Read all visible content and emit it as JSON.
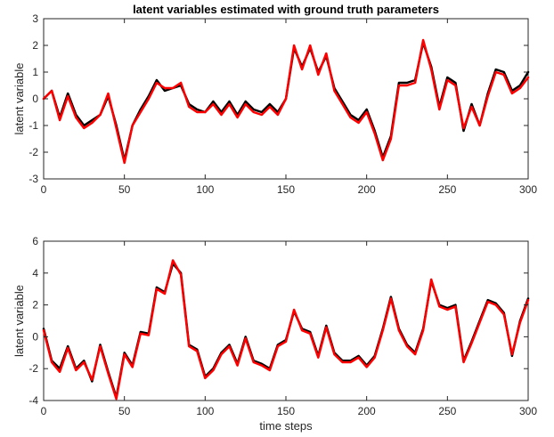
{
  "chart_data": [
    {
      "type": "line",
      "title": "latent variables estimated with ground truth parameters",
      "xlabel": "",
      "ylabel": "latent variable",
      "xlim": [
        0,
        300
      ],
      "ylim": [
        -3,
        3
      ],
      "xticks": [
        0,
        50,
        100,
        150,
        200,
        250,
        300
      ],
      "yticks": [
        -3,
        -2,
        -1,
        0,
        1,
        2,
        3
      ],
      "grid": false,
      "series": [
        {
          "color": "#000000",
          "x": [
            0,
            5,
            10,
            15,
            20,
            25,
            30,
            35,
            40,
            45,
            50,
            55,
            60,
            65,
            70,
            75,
            80,
            85,
            90,
            95,
            100,
            105,
            110,
            115,
            120,
            125,
            130,
            135,
            140,
            145,
            150,
            155,
            160,
            165,
            170,
            175,
            180,
            185,
            190,
            195,
            200,
            205,
            210,
            215,
            220,
            225,
            230,
            235,
            240,
            245,
            250,
            255,
            260,
            265,
            270,
            275,
            280,
            285,
            290,
            295,
            300
          ],
          "values": [
            0.0,
            0.3,
            -0.7,
            0.2,
            -0.6,
            -1.0,
            -0.8,
            -0.6,
            0.1,
            -1.0,
            -2.3,
            -1.0,
            -0.4,
            0.1,
            0.7,
            0.3,
            0.4,
            0.5,
            -0.2,
            -0.4,
            -0.5,
            -0.1,
            -0.5,
            -0.1,
            -0.6,
            -0.1,
            -0.4,
            -0.5,
            -0.2,
            -0.5,
            0.0,
            1.9,
            1.2,
            1.9,
            1.0,
            1.6,
            0.4,
            -0.1,
            -0.6,
            -0.8,
            -0.4,
            -1.2,
            -2.2,
            -1.4,
            0.6,
            0.6,
            0.7,
            2.1,
            1.2,
            -0.3,
            0.8,
            0.6,
            -1.2,
            -0.2,
            -1.0,
            0.2,
            1.1,
            1.0,
            0.3,
            0.5,
            1.0
          ]
        },
        {
          "color": "#ff0000",
          "x": [
            0,
            5,
            10,
            15,
            20,
            25,
            30,
            35,
            40,
            45,
            50,
            55,
            60,
            65,
            70,
            75,
            80,
            85,
            90,
            95,
            100,
            105,
            110,
            115,
            120,
            125,
            130,
            135,
            140,
            145,
            150,
            155,
            160,
            165,
            170,
            175,
            180,
            185,
            190,
            195,
            200,
            205,
            210,
            215,
            220,
            225,
            230,
            235,
            240,
            245,
            250,
            255,
            260,
            265,
            270,
            275,
            280,
            285,
            290,
            295,
            300
          ],
          "values": [
            0.0,
            0.3,
            -0.8,
            0.1,
            -0.7,
            -1.1,
            -0.9,
            -0.6,
            0.2,
            -1.1,
            -2.4,
            -1.0,
            -0.5,
            0.0,
            0.6,
            0.4,
            0.4,
            0.6,
            -0.3,
            -0.5,
            -0.5,
            -0.2,
            -0.6,
            -0.2,
            -0.7,
            -0.2,
            -0.5,
            -0.6,
            -0.3,
            -0.6,
            0.0,
            2.0,
            1.1,
            2.0,
            0.9,
            1.7,
            0.3,
            -0.2,
            -0.7,
            -0.9,
            -0.5,
            -1.3,
            -2.3,
            -1.5,
            0.5,
            0.5,
            0.6,
            2.2,
            1.1,
            -0.4,
            0.7,
            0.5,
            -1.1,
            -0.3,
            -1.0,
            0.1,
            1.0,
            0.9,
            0.2,
            0.4,
            0.8
          ]
        }
      ]
    },
    {
      "type": "line",
      "title": "",
      "xlabel": "time steps",
      "ylabel": "latent variable",
      "xlim": [
        0,
        300
      ],
      "ylim": [
        -4,
        6
      ],
      "xticks": [
        0,
        50,
        100,
        150,
        200,
        250,
        300
      ],
      "yticks": [
        -4,
        -2,
        0,
        2,
        4,
        6
      ],
      "grid": false,
      "series": [
        {
          "color": "#000000",
          "x": [
            0,
            5,
            10,
            15,
            20,
            25,
            30,
            35,
            40,
            45,
            50,
            55,
            60,
            65,
            70,
            75,
            80,
            85,
            90,
            95,
            100,
            105,
            110,
            115,
            120,
            125,
            130,
            135,
            140,
            145,
            150,
            155,
            160,
            165,
            170,
            175,
            180,
            185,
            190,
            195,
            200,
            205,
            210,
            215,
            220,
            225,
            230,
            235,
            240,
            245,
            250,
            255,
            260,
            265,
            270,
            275,
            280,
            285,
            290,
            295,
            300
          ],
          "values": [
            0.5,
            -1.5,
            -2.0,
            -0.6,
            -2.0,
            -1.5,
            -2.8,
            -0.5,
            -2.2,
            -3.8,
            -1.0,
            -1.8,
            0.3,
            0.2,
            3.1,
            2.8,
            4.6,
            4.0,
            -0.5,
            -0.8,
            -2.5,
            -2.0,
            -1.0,
            -0.5,
            -1.7,
            0.0,
            -1.5,
            -1.7,
            -2.0,
            -0.5,
            -0.2,
            1.6,
            0.5,
            0.3,
            -1.2,
            0.7,
            -1.0,
            -1.5,
            -1.5,
            -1.2,
            -1.8,
            -1.2,
            0.5,
            2.5,
            0.5,
            -0.5,
            -1.0,
            0.5,
            3.5,
            2.0,
            1.8,
            2.0,
            -1.5,
            -0.3,
            1.0,
            2.3,
            2.1,
            1.5,
            -1.2,
            1.0,
            2.4
          ]
        },
        {
          "color": "#ff0000",
          "x": [
            0,
            5,
            10,
            15,
            20,
            25,
            30,
            35,
            40,
            45,
            50,
            55,
            60,
            65,
            70,
            75,
            80,
            85,
            90,
            95,
            100,
            105,
            110,
            115,
            120,
            125,
            130,
            135,
            140,
            145,
            150,
            155,
            160,
            165,
            170,
            175,
            180,
            185,
            190,
            195,
            200,
            205,
            210,
            215,
            220,
            225,
            230,
            235,
            240,
            245,
            250,
            255,
            260,
            265,
            270,
            275,
            280,
            285,
            290,
            295,
            300
          ],
          "values": [
            0.4,
            -1.6,
            -2.2,
            -0.7,
            -2.1,
            -1.6,
            -2.7,
            -0.6,
            -2.3,
            -3.9,
            -1.1,
            -1.9,
            0.2,
            0.1,
            3.0,
            2.7,
            4.8,
            3.9,
            -0.6,
            -0.9,
            -2.6,
            -2.1,
            -1.1,
            -0.6,
            -1.8,
            -0.1,
            -1.6,
            -1.8,
            -2.1,
            -0.6,
            -0.3,
            1.7,
            0.4,
            0.2,
            -1.3,
            0.6,
            -1.1,
            -1.6,
            -1.6,
            -1.3,
            -1.9,
            -1.3,
            0.4,
            2.4,
            0.4,
            -0.6,
            -1.1,
            0.4,
            3.6,
            1.9,
            1.7,
            1.9,
            -1.6,
            -0.4,
            0.9,
            2.2,
            2.0,
            1.4,
            -1.1,
            0.9,
            2.3
          ]
        }
      ]
    }
  ]
}
